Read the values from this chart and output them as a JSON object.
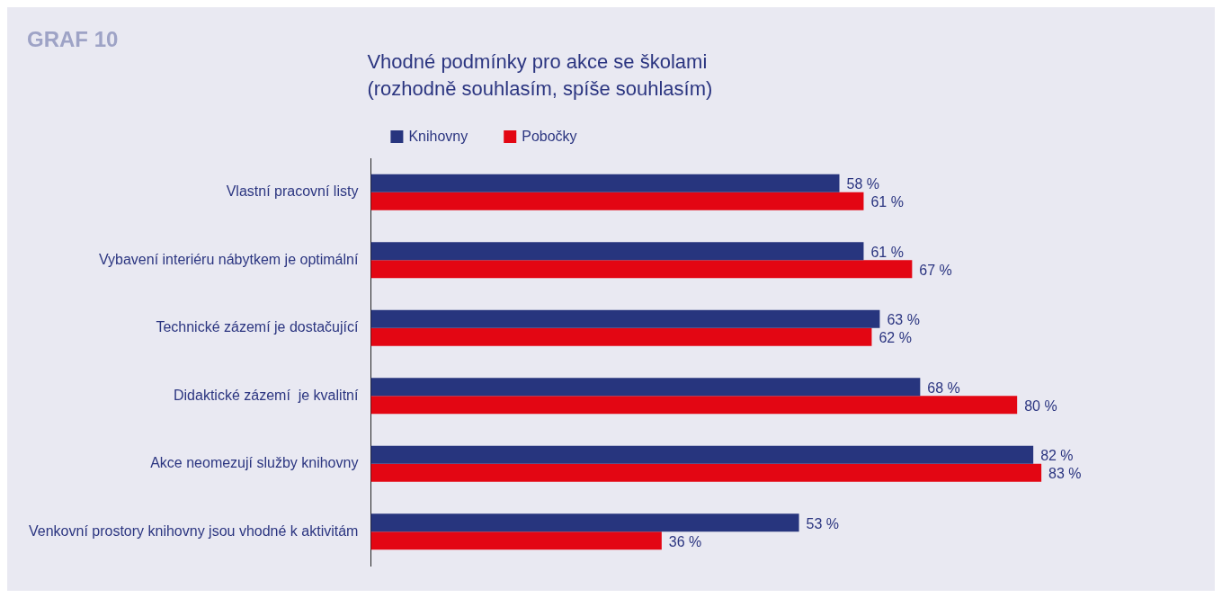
{
  "chart_data": {
    "type": "bar",
    "orientation": "horizontal",
    "title": "Vhodné podmínky pro akce se školami\n(rozhodně souhlasím, spíše souhlasím)",
    "annotations": [
      "GRAF 10"
    ],
    "categories": [
      "Vlastní pracovní listy",
      "Vybavení interiéru nábytkem je optimální",
      "Technické zázemí je dostačující",
      "Didaktické zázemí  je kvalitní",
      "Akce neomezují služby knihovny",
      "Venkovní prostory knihovny jsou vhodné k aktivitám"
    ],
    "series": [
      {
        "name": "Knihovny",
        "color": "#27357e",
        "values": [
          58,
          61,
          63,
          68,
          82,
          53
        ],
        "value_labels": [
          "58 %",
          "61 %",
          "63 %",
          "68 %",
          "82 %",
          "53 %"
        ]
      },
      {
        "name": "Pobočky",
        "color": "#e30613",
        "values": [
          61,
          67,
          62,
          80,
          83,
          36
        ],
        "value_labels": [
          "61 %",
          "67 %",
          "62 %",
          "80 %",
          "83 %",
          "36 %"
        ]
      }
    ],
    "tick_labels": "y",
    "legend": "top left"
  }
}
